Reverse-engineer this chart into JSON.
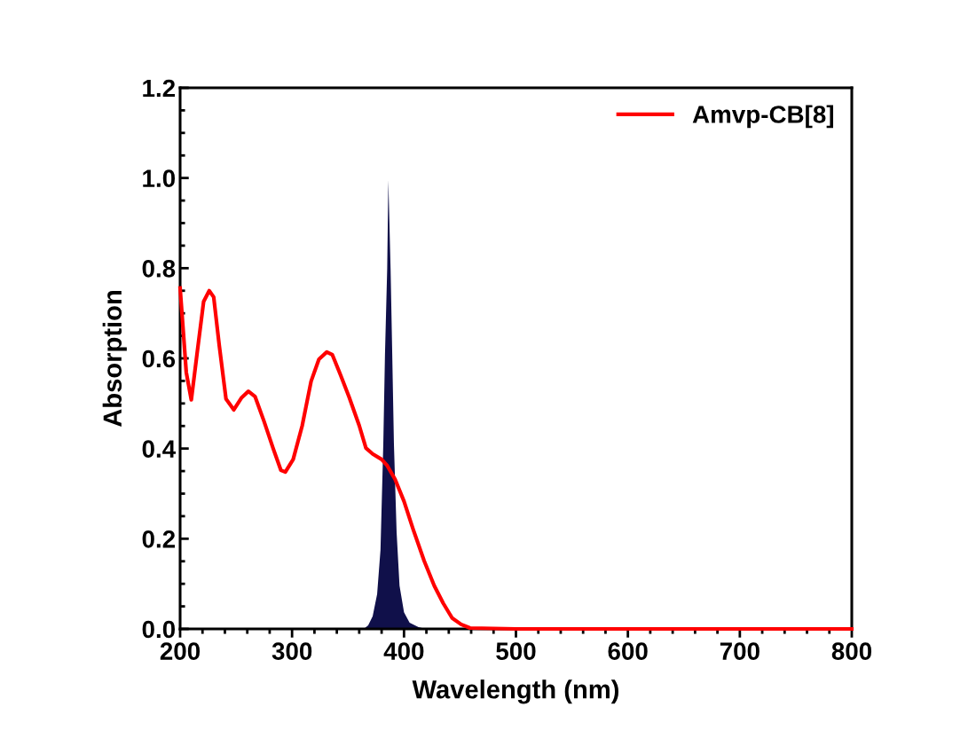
{
  "chart_data": {
    "type": "line",
    "xlabel": "Wavelength (nm)",
    "ylabel": "Absorption",
    "xlim": [
      200,
      800
    ],
    "ylim": [
      0,
      1.2
    ],
    "xticks": [
      200,
      300,
      400,
      500,
      600,
      700,
      800
    ],
    "yticks": [
      {
        "value": 0,
        "label": "0.0"
      },
      0.2,
      0.4,
      0.6,
      0.8,
      {
        "value": 1,
        "label": "1.0"
      },
      1.2
    ],
    "grid": false,
    "legend": "top right",
    "series": [
      {
        "type": "area",
        "color": "#10104a",
        "x": [
          364,
          368,
          372,
          376,
          379,
          381.5,
          383,
          385,
          386,
          388,
          389.5,
          391,
          393.4,
          396,
          400,
          405,
          413,
          419.5
        ],
        "values": [
          0,
          0.008,
          0.028,
          0.077,
          0.175,
          0.41,
          0.608,
          0.8,
          0.995,
          0.8,
          0.608,
          0.41,
          0.214,
          0.096,
          0.037,
          0.014,
          0.004,
          0
        ]
      },
      {
        "name": "Amvp-CB[8]",
        "color": "#ff0000",
        "x": [
          200,
          205.5,
          210,
          215,
          221,
          226,
          230,
          235,
          241,
          248,
          255,
          261,
          267,
          275,
          283,
          290,
          294,
          301,
          309,
          317,
          324,
          331,
          336,
          343,
          351,
          360,
          366,
          372,
          380,
          385,
          392,
          400,
          408,
          418,
          427,
          435,
          443,
          451,
          459,
          500,
          600,
          700,
          800
        ],
        "values": [
          0.756,
          0.569,
          0.508,
          0.608,
          0.726,
          0.75,
          0.736,
          0.628,
          0.51,
          0.486,
          0.513,
          0.527,
          0.515,
          0.46,
          0.401,
          0.352,
          0.348,
          0.376,
          0.45,
          0.549,
          0.598,
          0.614,
          0.608,
          0.565,
          0.514,
          0.451,
          0.401,
          0.388,
          0.376,
          0.362,
          0.332,
          0.283,
          0.222,
          0.151,
          0.096,
          0.057,
          0.024,
          0.01,
          0.002,
          0,
          0,
          0,
          0
        ]
      }
    ]
  }
}
